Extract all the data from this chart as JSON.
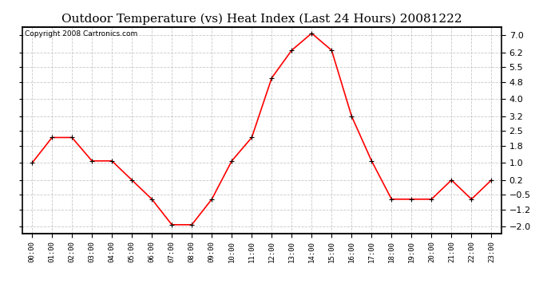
{
  "title": "Outdoor Temperature (vs) Heat Index (Last 24 Hours) 20081222",
  "copyright": "Copyright 2008 Cartronics.com",
  "x_labels": [
    "00:00",
    "01:00",
    "02:00",
    "03:00",
    "04:00",
    "05:00",
    "06:00",
    "07:00",
    "08:00",
    "09:00",
    "10:00",
    "11:00",
    "12:00",
    "13:00",
    "14:00",
    "15:00",
    "16:00",
    "17:00",
    "18:00",
    "19:00",
    "20:00",
    "21:00",
    "22:00",
    "23:00"
  ],
  "y_values": [
    1.0,
    2.2,
    2.2,
    1.1,
    1.1,
    0.2,
    -0.7,
    -1.9,
    -1.9,
    -0.7,
    1.1,
    2.2,
    5.0,
    6.3,
    7.1,
    6.3,
    3.2,
    1.1,
    -0.7,
    -0.7,
    -0.7,
    0.2,
    -0.7,
    0.2
  ],
  "line_color": "#ff0000",
  "marker_color": "#000000",
  "background_color": "#ffffff",
  "grid_color": "#c8c8c8",
  "ylim": [
    -2.3,
    7.4
  ],
  "yticks": [
    -2.0,
    -1.2,
    -0.5,
    0.2,
    1.0,
    1.8,
    2.5,
    3.2,
    4.0,
    4.8,
    5.5,
    6.2,
    7.0
  ],
  "title_fontsize": 11,
  "copyright_fontsize": 6.5
}
